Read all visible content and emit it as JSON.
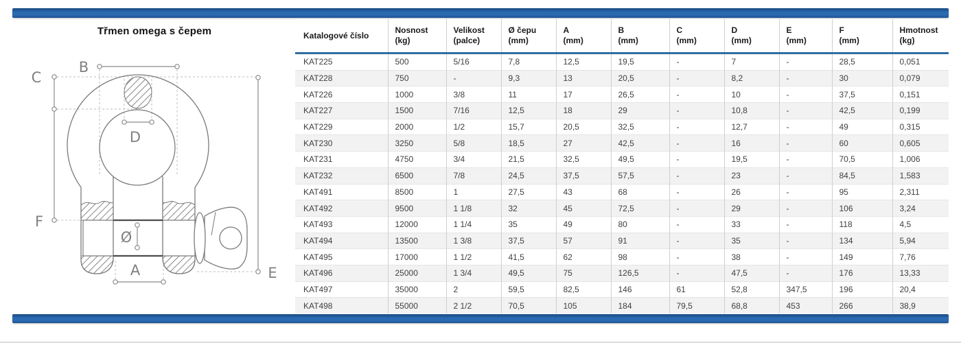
{
  "diagram": {
    "title": "Třmen omega s čepem",
    "labels": {
      "b": "B",
      "c": "C",
      "d": "D",
      "f": "F",
      "a": "A",
      "e": "E",
      "dia": "Ø"
    }
  },
  "table": {
    "columns": [
      {
        "line1": "Katalogové číslo",
        "line2": ""
      },
      {
        "line1": "Nosnost",
        "line2": "(kg)"
      },
      {
        "line1": "Velikost",
        "line2": "(palce)"
      },
      {
        "line1": "Ø čepu",
        "line2": "(mm)"
      },
      {
        "line1": "A",
        "line2": "(mm)"
      },
      {
        "line1": "B",
        "line2": "(mm)"
      },
      {
        "line1": "C",
        "line2": "(mm)"
      },
      {
        "line1": "D",
        "line2": "(mm)"
      },
      {
        "line1": "E",
        "line2": "(mm)"
      },
      {
        "line1": "F",
        "line2": "(mm)"
      },
      {
        "line1": "Hmotnost",
        "line2": "(kg)"
      }
    ],
    "rows": [
      [
        "KAT225",
        "500",
        "5/16",
        "7,8",
        "12,5",
        "19,5",
        "-",
        "7",
        "-",
        "28,5",
        "0,051"
      ],
      [
        "KAT228",
        "750",
        "-",
        "9,3",
        "13",
        "20,5",
        "-",
        "8,2",
        "-",
        "30",
        "0,079"
      ],
      [
        "KAT226",
        "1000",
        "3/8",
        "11",
        "17",
        "26,5",
        "-",
        "10",
        "-",
        "37,5",
        "0,151"
      ],
      [
        "KAT227",
        "1500",
        "7/16",
        "12,5",
        "18",
        "29",
        "-",
        "10,8",
        "-",
        "42,5",
        "0,199"
      ],
      [
        "KAT229",
        "2000",
        "1/2",
        "15,7",
        "20,5",
        "32,5",
        "-",
        "12,7",
        "-",
        "49",
        "0,315"
      ],
      [
        "KAT230",
        "3250",
        "5/8",
        "18,5",
        "27",
        "42,5",
        "-",
        "16",
        "-",
        "60",
        "0,605"
      ],
      [
        "KAT231",
        "4750",
        "3/4",
        "21,5",
        "32,5",
        "49,5",
        "-",
        "19,5",
        "-",
        "70,5",
        "1,006"
      ],
      [
        "KAT232",
        "6500",
        "7/8",
        "24,5",
        "37,5",
        "57,5",
        "-",
        "23",
        "-",
        "84,5",
        "1,583"
      ],
      [
        "KAT491",
        "8500",
        "1",
        "27,5",
        "43",
        "68",
        "-",
        "26",
        "-",
        "95",
        "2,311"
      ],
      [
        "KAT492",
        "9500",
        "1 1/8",
        "32",
        "45",
        "72,5",
        "-",
        "29",
        "-",
        "106",
        "3,24"
      ],
      [
        "KAT493",
        "12000",
        "1 1/4",
        "35",
        "49",
        "80",
        "-",
        "33",
        "-",
        "118",
        "4,5"
      ],
      [
        "KAT494",
        "13500",
        "1 3/8",
        "37,5",
        "57",
        "91",
        "-",
        "35",
        "-",
        "134",
        "5,94"
      ],
      [
        "KAT495",
        "17000",
        "1 1/2",
        "41,5",
        "62",
        "98",
        "-",
        "38",
        "-",
        "149",
        "7,76"
      ],
      [
        "KAT496",
        "25000",
        "1 3/4",
        "49,5",
        "75",
        "126,5",
        "-",
        "47,5",
        "-",
        "176",
        "13,33"
      ],
      [
        "KAT497",
        "35000",
        "2",
        "59,5",
        "82,5",
        "146",
        "61",
        "52,8",
        "347,5",
        "196",
        "20,4"
      ],
      [
        "KAT498",
        "55000",
        "2 1/2",
        "70,5",
        "105",
        "184",
        "79,5",
        "68,8",
        "453",
        "266",
        "38,9"
      ]
    ]
  },
  "colors": {
    "accent_bar": "#2a69b0",
    "header_rule": "#2e6da4",
    "row_alt": "#f2f2f2",
    "diagram_line": "#7a7a7a"
  }
}
